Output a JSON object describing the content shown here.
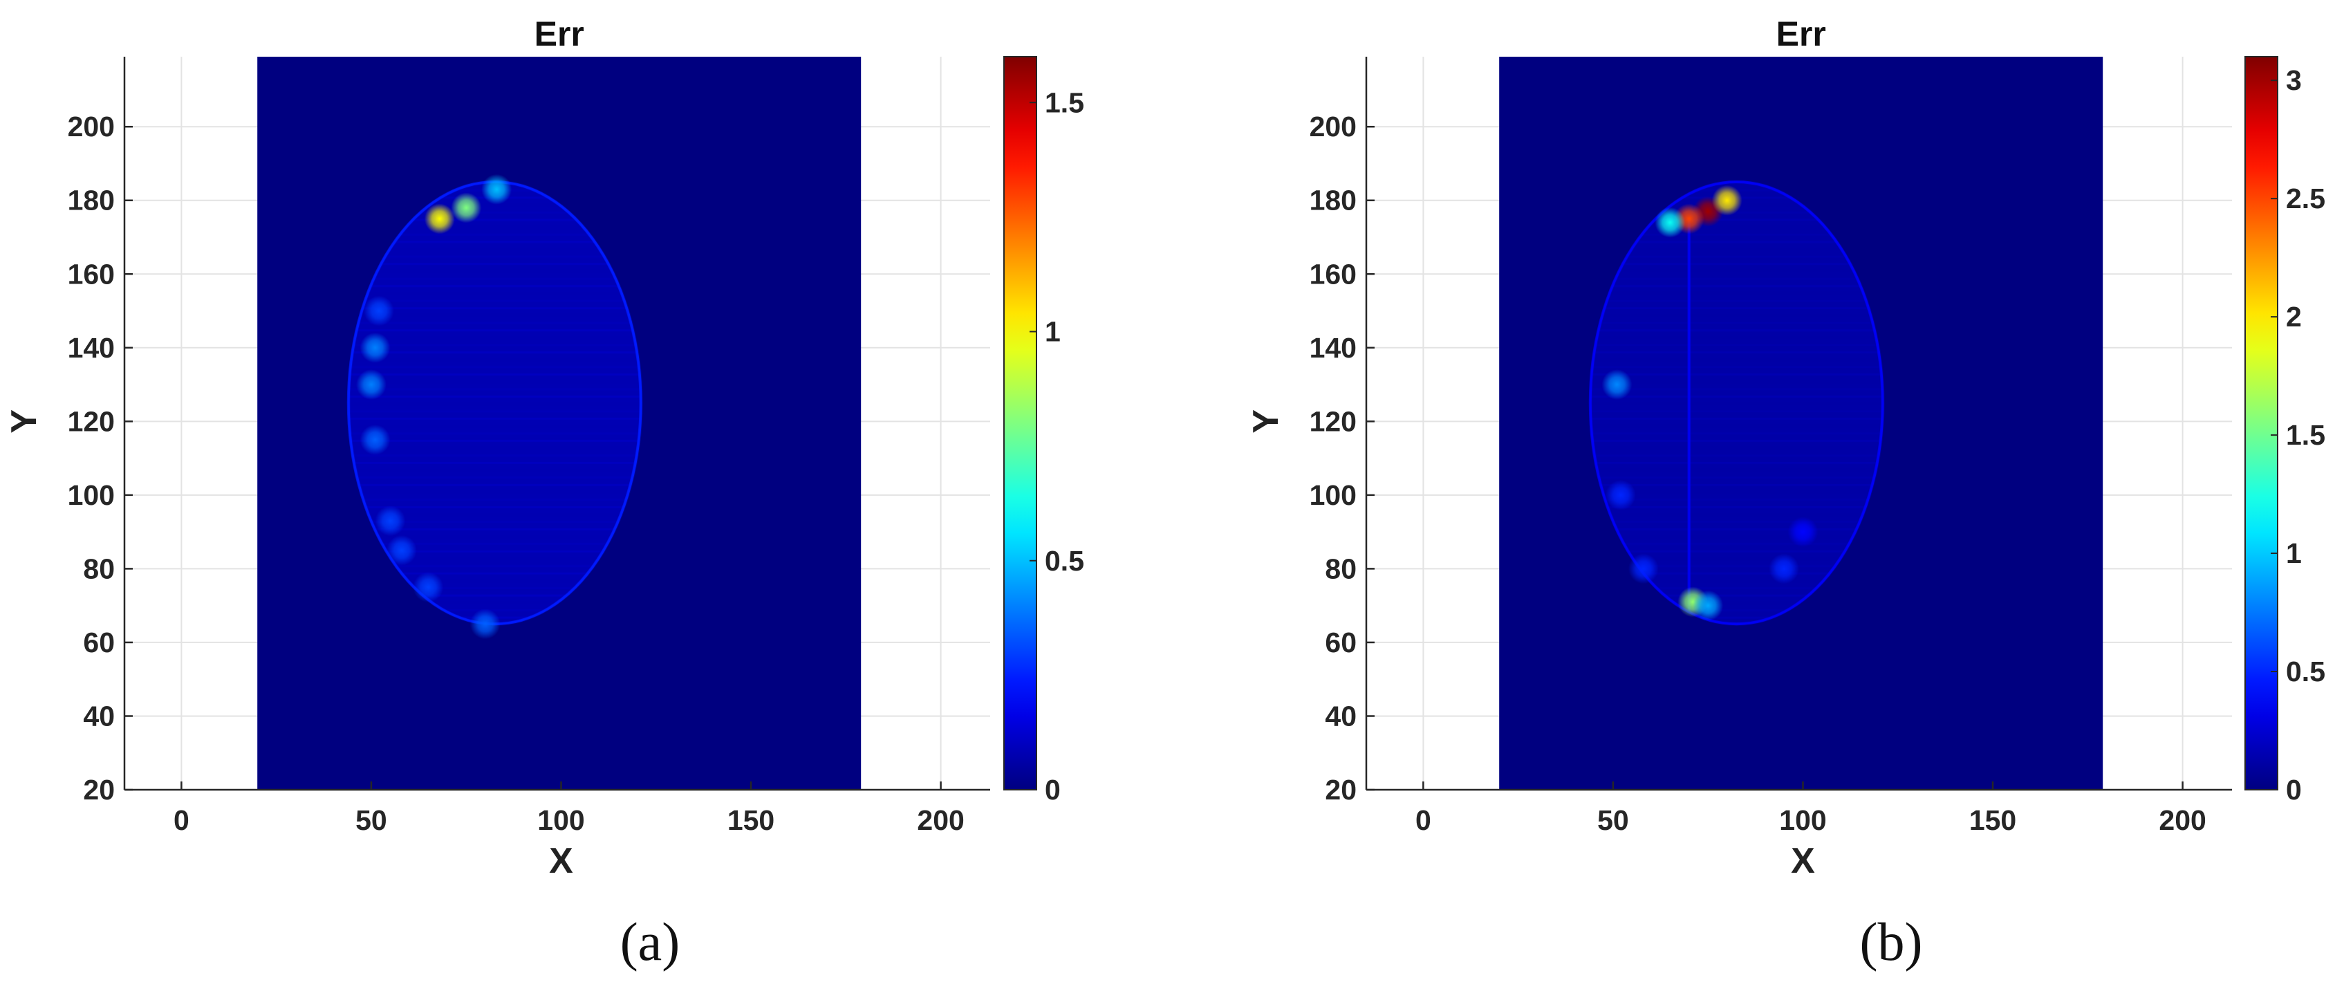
{
  "chart_data": [
    {
      "type": "heatmap",
      "panel_label": "(a)",
      "title": "Err",
      "xlabel": "X",
      "ylabel": "Y",
      "xlim": [
        -15,
        213
      ],
      "ylim": [
        20,
        219
      ],
      "xticks": [
        0,
        50,
        100,
        150,
        200
      ],
      "yticks": [
        20,
        40,
        60,
        80,
        100,
        120,
        140,
        160,
        180,
        200
      ],
      "grid": true,
      "colormap": "jet",
      "image_extent": {
        "x": [
          20,
          179
        ],
        "y": [
          20,
          219
        ]
      },
      "colorbar": {
        "min": 0,
        "max": 1.6,
        "ticks": [
          0,
          0.5,
          1,
          1.5
        ]
      },
      "background_value": 0,
      "error_region": {
        "shape": "ellipse",
        "center": [
          82.5,
          125
        ],
        "radii": [
          38.5,
          60
        ],
        "base_value": 0.08
      },
      "hotspots": [
        {
          "x": 68,
          "y": 175,
          "value": 1.0
        },
        {
          "x": 75,
          "y": 178,
          "value": 0.8
        },
        {
          "x": 83,
          "y": 183,
          "value": 0.5
        },
        {
          "x": 51,
          "y": 140,
          "value": 0.4
        },
        {
          "x": 50,
          "y": 130,
          "value": 0.4
        },
        {
          "x": 52,
          "y": 150,
          "value": 0.3
        },
        {
          "x": 51,
          "y": 115,
          "value": 0.35
        },
        {
          "x": 55,
          "y": 93,
          "value": 0.3
        },
        {
          "x": 58,
          "y": 85,
          "value": 0.3
        },
        {
          "x": 65,
          "y": 75,
          "value": 0.3
        },
        {
          "x": 80,
          "y": 65,
          "value": 0.35
        }
      ]
    },
    {
      "type": "heatmap",
      "panel_label": "(b)",
      "title": "Err",
      "xlabel": "X",
      "ylabel": "Y",
      "xlim": [
        -15,
        213
      ],
      "ylim": [
        20,
        219
      ],
      "xticks": [
        0,
        50,
        100,
        150,
        200
      ],
      "yticks": [
        20,
        40,
        60,
        80,
        100,
        120,
        140,
        160,
        180,
        200
      ],
      "grid": true,
      "colormap": "jet",
      "image_extent": {
        "x": [
          20,
          179
        ],
        "y": [
          20,
          219
        ]
      },
      "colorbar": {
        "min": 0,
        "max": 3.1,
        "ticks": [
          0,
          0.5,
          1,
          1.5,
          2,
          2.5,
          3
        ]
      },
      "background_value": 0,
      "error_region": {
        "shape": "ellipse",
        "center": [
          82.5,
          125
        ],
        "radii": [
          38.5,
          60
        ],
        "base_value": 0.12
      },
      "vertical_line": {
        "x": 70,
        "y": [
          68,
          175
        ],
        "value": 0.35
      },
      "hotspots": [
        {
          "x": 75,
          "y": 177,
          "value": 3.0
        },
        {
          "x": 70,
          "y": 175,
          "value": 2.5
        },
        {
          "x": 80,
          "y": 180,
          "value": 2.0
        },
        {
          "x": 65,
          "y": 174,
          "value": 1.2
        },
        {
          "x": 71,
          "y": 71,
          "value": 1.6
        },
        {
          "x": 75,
          "y": 70,
          "value": 0.9
        },
        {
          "x": 51,
          "y": 130,
          "value": 0.8
        },
        {
          "x": 52,
          "y": 100,
          "value": 0.5
        },
        {
          "x": 58,
          "y": 80,
          "value": 0.5
        },
        {
          "x": 95,
          "y": 80,
          "value": 0.5
        },
        {
          "x": 100,
          "y": 90,
          "value": 0.4
        }
      ]
    }
  ]
}
